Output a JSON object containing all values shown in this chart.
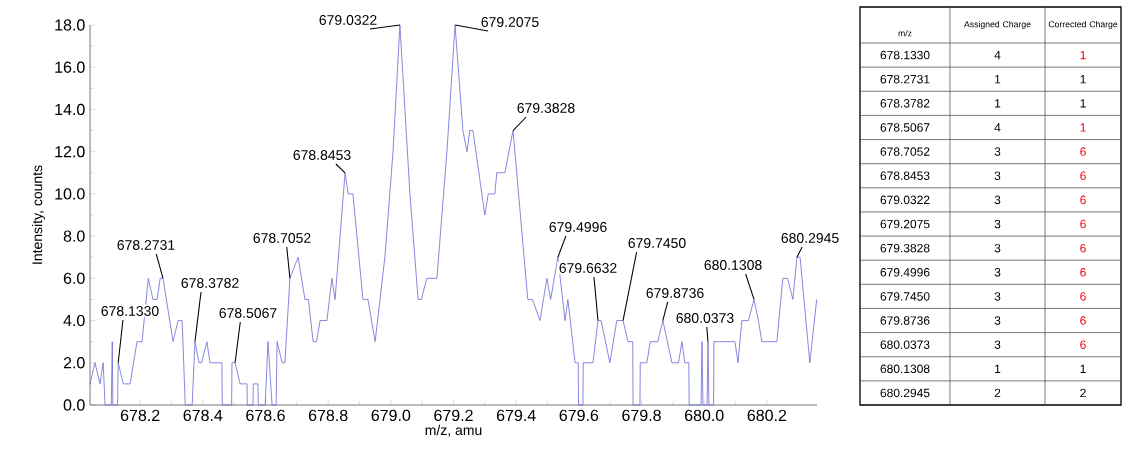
{
  "chart_data": [
    {
      "type": "line",
      "xlabel": "m/z, amu",
      "ylabel": "Intensity, counts",
      "x": [
        678.04,
        678.056,
        678.072,
        678.082,
        678.088,
        678.108,
        678.111,
        678.113,
        678.128,
        678.13,
        678.146,
        678.168,
        678.19,
        678.206,
        678.226,
        678.241,
        678.254,
        678.264,
        678.273,
        678.305,
        678.321,
        678.334,
        678.344,
        678.366,
        678.375,
        678.388,
        678.396,
        678.413,
        678.423,
        678.461,
        678.462,
        678.492,
        678.493,
        678.503,
        678.519,
        678.541,
        678.542,
        678.56,
        678.561,
        678.576,
        678.577,
        678.599,
        678.608,
        678.621,
        678.634,
        678.637,
        678.653,
        678.662,
        678.678,
        678.704,
        678.726,
        678.737,
        678.752,
        678.763,
        678.774,
        678.796,
        678.812,
        678.822,
        678.854,
        678.864,
        678.879,
        678.911,
        678.927,
        678.95,
        678.981,
        679.007,
        679.029,
        679.061,
        679.087,
        679.097,
        679.115,
        679.147,
        679.179,
        679.205,
        679.23,
        679.243,
        679.252,
        679.262,
        679.3,
        679.311,
        679.332,
        679.338,
        679.364,
        679.39,
        679.437,
        679.452,
        679.476,
        679.498,
        679.51,
        679.533,
        679.556,
        679.565,
        679.588,
        679.598,
        679.599,
        679.613,
        679.614,
        679.645,
        679.661,
        679.671,
        679.699,
        679.721,
        679.741,
        679.757,
        679.772,
        679.773,
        679.795,
        679.796,
        679.817,
        679.828,
        679.852,
        679.868,
        679.897,
        679.918,
        679.929,
        679.938,
        679.951,
        679.952,
        679.99,
        679.993,
        679.996,
        680.009,
        680.012,
        680.015,
        680.03,
        680.031,
        680.098,
        680.108,
        680.12,
        680.141,
        680.159,
        680.173,
        680.184,
        680.232,
        680.251,
        680.266,
        680.283,
        680.296,
        680.306,
        680.337,
        680.359
      ],
      "series": [
        {
          "color": "#6a6ad8",
          "values": [
            1,
            2,
            1,
            2,
            0,
            0,
            3,
            0,
            0,
            2,
            1,
            1,
            3,
            3,
            6,
            5,
            5,
            6,
            6,
            3,
            4,
            4,
            0,
            0,
            3,
            2,
            2,
            3,
            2,
            2,
            0,
            0,
            2,
            2,
            1,
            1,
            0,
            0,
            1,
            1,
            0,
            0,
            3,
            0,
            0,
            3,
            2,
            2,
            6,
            7,
            5,
            5,
            3,
            3,
            4,
            4,
            6,
            5,
            11,
            10,
            10,
            5,
            5,
            3,
            7,
            12,
            18,
            10,
            5,
            5,
            6,
            6,
            12,
            18,
            13,
            12,
            13,
            13,
            9,
            10,
            10,
            11,
            11,
            13,
            5,
            5,
            4,
            6,
            5,
            7,
            4,
            5,
            2,
            2,
            0,
            0,
            2,
            2,
            4,
            4,
            2,
            4,
            4,
            3,
            3,
            0,
            0,
            2,
            2,
            3,
            3,
            4,
            2,
            2,
            3,
            2,
            2,
            0,
            0,
            3,
            0,
            0,
            3,
            0,
            0,
            3,
            3,
            2,
            4,
            4,
            5,
            4,
            3,
            3,
            6,
            6,
            5,
            7,
            7,
            2,
            5
          ]
        }
      ],
      "xlim": [
        678.04,
        680.36
      ],
      "ylim": [
        0,
        18
      ],
      "xticks": [
        678.2,
        678.4,
        678.6,
        678.8,
        {
          "value": 679.0,
          "label": "679.0"
        },
        679.2,
        679.4,
        679.6,
        679.8,
        {
          "value": 680.0,
          "label": "680.0"
        },
        680.2
      ],
      "yticks": [
        {
          "value": 0,
          "label": "0.0"
        },
        {
          "value": 2,
          "label": "2.0"
        },
        {
          "value": 4,
          "label": "4.0"
        },
        {
          "value": 6,
          "label": "6.0"
        },
        {
          "value": 8,
          "label": "8.0"
        },
        {
          "value": 10,
          "label": "10.0"
        },
        {
          "value": 12,
          "label": "12.0"
        },
        {
          "value": 14,
          "label": "14.0"
        },
        {
          "value": 16,
          "label": "16.0"
        },
        {
          "value": 18,
          "label": "18.0"
        }
      ],
      "annotations": [
        {
          "text": "678.1330",
          "x": 678.13,
          "y": 2
        },
        {
          "text": "678.2731",
          "x": 678.273,
          "y": 6
        },
        {
          "text": "678.3782",
          "x": 678.375,
          "y": 3
        },
        {
          "text": "678.5067",
          "x": 678.503,
          "y": 2
        },
        {
          "text": "678.7052",
          "x": 678.678,
          "y": 6
        },
        {
          "text": "678.8453",
          "x": 678.854,
          "y": 11
        },
        {
          "text": "679.0322",
          "x": 679.029,
          "y": 18
        },
        {
          "text": "679.2075",
          "x": 679.205,
          "y": 18
        },
        {
          "text": "679.3828",
          "x": 679.39,
          "y": 13
        },
        {
          "text": "679.4996",
          "x": 679.533,
          "y": 7
        },
        {
          "text": "679.6632",
          "x": 679.661,
          "y": 4
        },
        {
          "text": "679.7450",
          "x": 679.741,
          "y": 4
        },
        {
          "text": "679.8736",
          "x": 679.868,
          "y": 4
        },
        {
          "text": "680.0373",
          "x": 680.012,
          "y": 3
        },
        {
          "text": "680.1308",
          "x": 680.159,
          "y": 5
        },
        {
          "text": "680.2945",
          "x": 680.296,
          "y": 7
        }
      ]
    },
    {
      "type": "heatmap",
      "ylabel": "m/z",
      "categories": [
        "Assigned Charge",
        "Corrected Charge"
      ],
      "y_categories": [
        "678.1330",
        "678.2731",
        "678.3782",
        "678.5067",
        "678.7052",
        "678.8453",
        "679.0322",
        "679.2075",
        "679.3828",
        "679.4996",
        "679.7450",
        "679.8736",
        "680.0373",
        "680.1308",
        "680.2945"
      ],
      "cells": [
        [
          4,
          1
        ],
        [
          1,
          1
        ],
        [
          1,
          1
        ],
        [
          4,
          1
        ],
        [
          3,
          6
        ],
        [
          3,
          6
        ],
        [
          3,
          6
        ],
        [
          3,
          6
        ],
        [
          3,
          6
        ],
        [
          3,
          6
        ],
        [
          3,
          6
        ],
        [
          3,
          6
        ],
        [
          3,
          6
        ],
        [
          1,
          1
        ],
        [
          2,
          2
        ]
      ],
      "data_labels": true
    }
  ]
}
